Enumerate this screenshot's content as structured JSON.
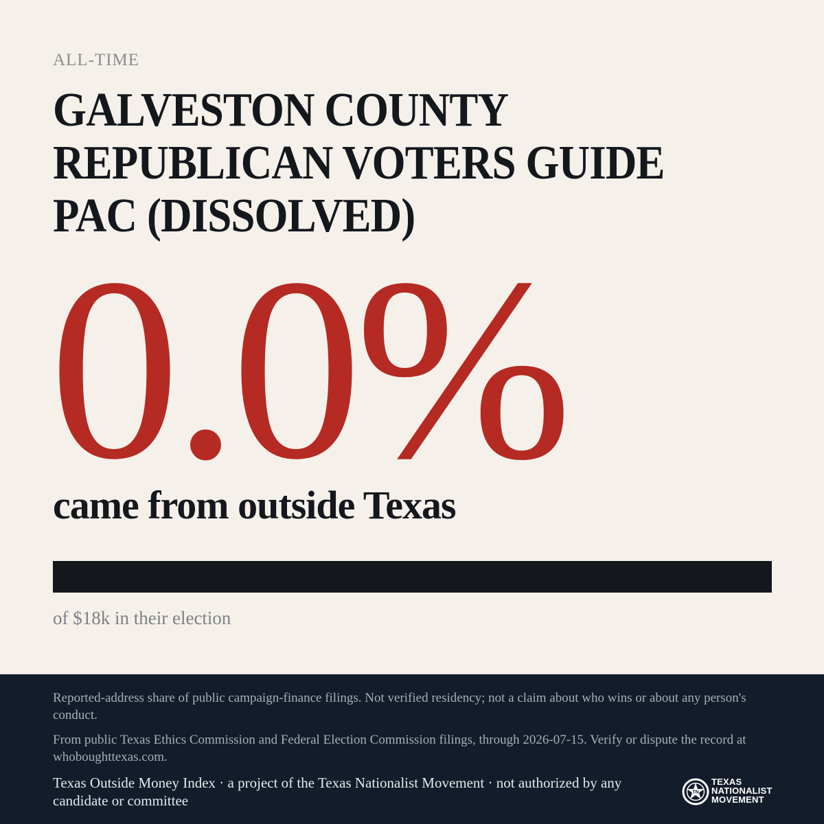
{
  "header": {
    "eyebrow": "ALL-TIME",
    "title": "GALVESTON COUNTY REPUBLICAN VOTERS GUIDE PAC (DISSOLVED)"
  },
  "stat": {
    "value": "0.0%",
    "caption": "came from outside Texas",
    "outside_share_fraction": 0.0,
    "subcaption": "of $18k in their election"
  },
  "colors": {
    "accent": "#b52a22",
    "ink": "#14181d",
    "background": "#f5f1ea",
    "footer_background": "#121c2a"
  },
  "footer": {
    "disclaimer_1": "Reported-address share of public campaign-finance filings. Not verified residency; not a claim about who wins or about any person's conduct.",
    "disclaimer_2": "From public Texas Ethics Commission and Federal Election Commission filings, through 2026-07-15. Verify or dispute the record at whoboughttexas.com.",
    "credit": "Texas Outside Money Index · a project of the Texas Nationalist Movement · not authorized by any candidate or committee",
    "logo": {
      "icon": "tnm-star-seal-icon",
      "line1": "TEXAS",
      "line2": "NATIONALIST",
      "line3": "MOVEMENT"
    }
  }
}
